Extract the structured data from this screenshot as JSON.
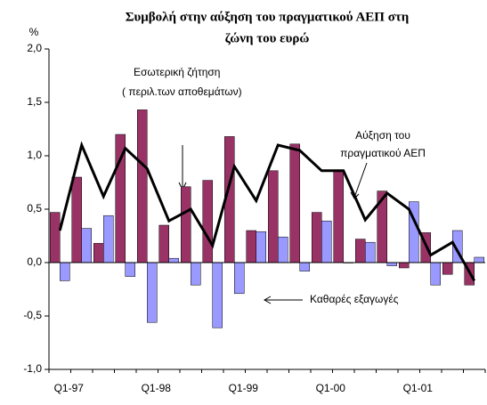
{
  "chart_data": {
    "type": "bar",
    "title": [
      "Συμβολή στην αύξηση του πραγματικού ΑΕΠ στη",
      "ζώνη του ευρώ"
    ],
    "y_label": "%",
    "categories": [
      "Q1-97",
      null,
      null,
      null,
      "Q1-98",
      null,
      null,
      null,
      "Q1-99",
      null,
      null,
      null,
      "Q1-00",
      null,
      null,
      null,
      "Q1-01",
      null,
      null,
      null
    ],
    "series": [
      {
        "color": "#993366",
        "type": "bar",
        "values": [
          0.47,
          0.8,
          0.18,
          1.2,
          1.43,
          0.35,
          0.71,
          0.77,
          1.18,
          0.3,
          0.86,
          1.11,
          0.47,
          0.86,
          0.22,
          0.67,
          -0.05,
          0.28,
          -0.11,
          -0.21
        ]
      },
      {
        "color": "#9999ff",
        "type": "bar",
        "values": [
          -0.17,
          0.32,
          0.44,
          -0.13,
          -0.56,
          0.04,
          -0.21,
          -0.61,
          -0.29,
          0.29,
          0.24,
          -0.08,
          0.39,
          0.0,
          0.19,
          -0.03,
          0.57,
          -0.21,
          0.3,
          0.05
        ]
      },
      {
        "color": "#000000",
        "type": "line",
        "values": [
          0.3,
          1.1,
          0.62,
          1.07,
          0.88,
          0.39,
          0.5,
          0.16,
          0.9,
          0.58,
          1.1,
          1.05,
          0.86,
          0.86,
          0.4,
          0.65,
          0.5,
          0.07,
          0.19,
          -0.17
        ]
      }
    ],
    "ylim": [
      -1.0,
      2.0
    ],
    "yticks": [
      {
        "value": -1.0,
        "label": "-1,0"
      },
      {
        "value": -0.5,
        "label": "-0,5"
      },
      {
        "value": 0.0,
        "label": "0,0"
      },
      {
        "value": 0.5,
        "label": "0,5"
      },
      {
        "value": 1.0,
        "label": "1,0"
      },
      {
        "value": 1.5,
        "label": "1,5"
      },
      {
        "value": 2.0,
        "label": "2,0"
      }
    ],
    "annotations": [
      "Εσωτερική ζήτηση",
      "( περιλ.των αποθεμάτων)",
      "Αύξηση του",
      "πραγματικού ΑΕΠ",
      "Καθαρές εξαγωγές"
    ]
  }
}
